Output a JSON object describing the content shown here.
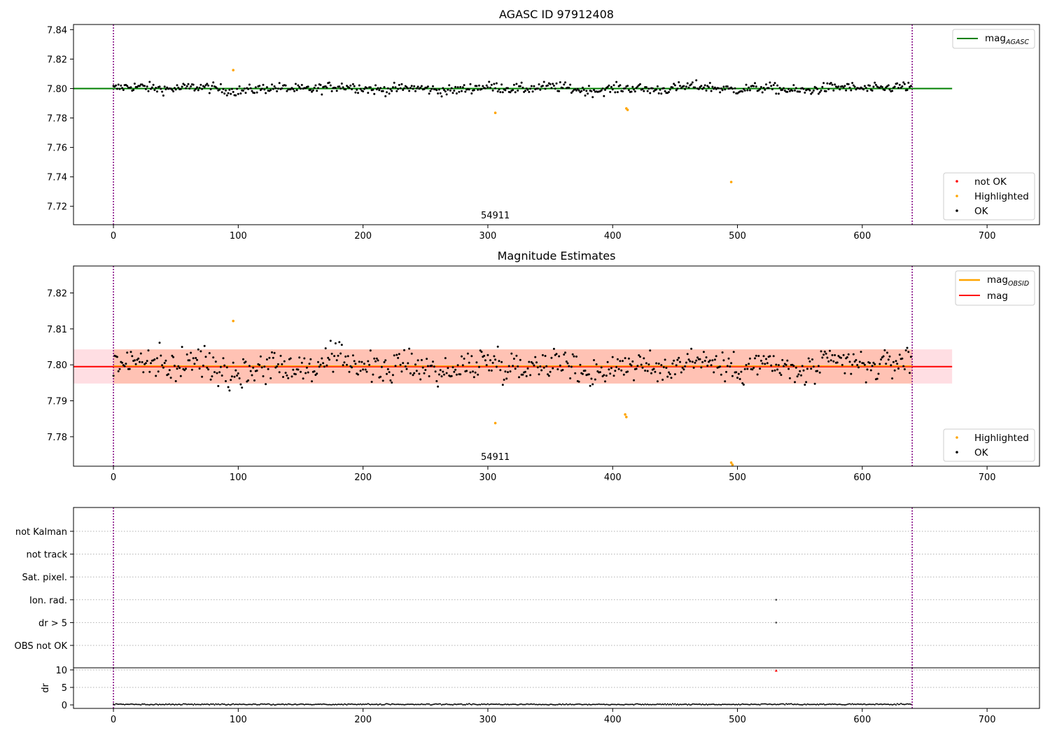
{
  "colors": {
    "ok": "#000000",
    "highlighted": "#ffa500",
    "not_ok": "#ff0000",
    "mag_agasc": "#008000",
    "mag_obsid": "#ffa500",
    "mag": "#ff0000",
    "obs_band": "#ffa07a",
    "mag_band": "#ffb6c1",
    "boundary": "#800080",
    "grid": "#b0b0b0"
  },
  "chart_data": [
    {
      "type": "scatter",
      "title": "AGASC ID 97912408",
      "xlim": [
        -32,
        742
      ],
      "ylim": [
        7.7075,
        7.8435
      ],
      "x_ticks": [
        0,
        100,
        200,
        300,
        400,
        500,
        600,
        700
      ],
      "y_ticks": [
        7.72,
        7.74,
        7.76,
        7.78,
        7.8,
        7.82,
        7.84
      ],
      "y_decimals": 2,
      "obsid_label": "54911",
      "obsid_label_x": 306,
      "obs_boundaries": [
        0,
        640
      ],
      "reference_lines": [
        {
          "name": "mag",
          "sub": "AGASC",
          "value": 7.8,
          "x_range": [
            -32,
            672
          ]
        }
      ],
      "series": [
        {
          "name": "not OK",
          "count": 0
        },
        {
          "name": "Highlighted",
          "points": [
            [
              96,
              7.8125
            ],
            [
              306,
              7.7835
            ],
            [
              411,
              7.7865
            ],
            [
              412,
              7.7855
            ],
            [
              495,
              7.7365
            ]
          ]
        },
        {
          "name": "OK",
          "count": 634,
          "n_points": 640,
          "center": 7.8,
          "amplitude": 0.0045,
          "range": [
            7.7875,
            7.811
          ]
        }
      ],
      "legend_items": [
        {
          "label": "not OK",
          "marker": "not_ok"
        },
        {
          "label": "Highlighted",
          "marker": "highlighted"
        },
        {
          "label": "OK",
          "marker": "ok"
        }
      ],
      "lines_legend_items": [
        {
          "label": "mag",
          "sub": "AGASC",
          "line": "mag_agasc"
        }
      ]
    },
    {
      "type": "scatter",
      "title": "Magnitude Estimates",
      "xlim": [
        -32,
        742
      ],
      "ylim": [
        7.7718,
        7.8275
      ],
      "x_ticks": [
        0,
        100,
        200,
        300,
        400,
        500,
        600,
        700
      ],
      "y_ticks": [
        7.78,
        7.79,
        7.8,
        7.81,
        7.82
      ],
      "y_decimals": 2,
      "obsid_label": "54911",
      "obsid_label_x": 306,
      "obs_boundaries": [
        0,
        640
      ],
      "bands": [
        {
          "name": "mag band",
          "y_range": [
            7.7948,
            7.8043
          ],
          "x_range": [
            -32,
            672
          ]
        },
        {
          "name": "mag_OBSID band",
          "y_range": [
            7.7948,
            7.8043
          ],
          "x_range": [
            0,
            640
          ]
        }
      ],
      "reference_lines": [
        {
          "name": "mag",
          "sub": "OBSID",
          "value": 7.7997,
          "x_range": [
            0,
            640
          ]
        },
        {
          "name": "mag",
          "sub": "",
          "value": 7.7995,
          "x_range": [
            -32,
            672
          ]
        }
      ],
      "series": [
        {
          "name": "Highlighted",
          "points": [
            [
              96,
              7.8122
            ],
            [
              306,
              7.7838
            ],
            [
              410,
              7.7862
            ],
            [
              411,
              7.7855
            ],
            [
              495,
              7.7728
            ],
            [
              496,
              7.7722
            ]
          ]
        },
        {
          "name": "OK",
          "n_points": 640,
          "center": 7.7997,
          "amplitude": 0.0055,
          "range": [
            7.7875,
            7.811
          ]
        }
      ],
      "legend_items": [
        {
          "label": "Highlighted",
          "marker": "highlighted"
        },
        {
          "label": "OK",
          "marker": "ok"
        }
      ],
      "lines_legend_items": [
        {
          "label": "mag",
          "sub": "OBSID",
          "line": "mag_obsid"
        },
        {
          "label": "mag",
          "sub": "",
          "line": "mag"
        }
      ]
    },
    {
      "type": "scatter",
      "title": "",
      "xlim": [
        -32,
        742
      ],
      "categories": [
        "OBS not OK",
        "dr > 5",
        "Ion. rad.",
        "Sat. pixel.",
        "not track",
        "not Kalman"
      ],
      "obs_boundaries": [
        0,
        640
      ],
      "flag_points": [
        {
          "category": "Ion. rad.",
          "x": 531
        },
        {
          "category": "dr > 5",
          "x": 531
        }
      ]
    },
    {
      "type": "scatter",
      "title": "",
      "ylabel": "dr",
      "xlim": [
        -32,
        742
      ],
      "ylim": [
        -1,
        10.6
      ],
      "x_ticks": [
        0,
        100,
        200,
        300,
        400,
        500,
        600,
        700
      ],
      "y_ticks": [
        0,
        5,
        10
      ],
      "y_decimals": 0,
      "obs_boundaries": [
        0,
        640
      ],
      "series": [
        {
          "name": "dr",
          "n_points": 640,
          "center": 0.15,
          "amplitude": 0.12
        },
        {
          "name": "not OK",
          "points": [
            [
              531,
              9.8
            ]
          ]
        }
      ]
    }
  ]
}
